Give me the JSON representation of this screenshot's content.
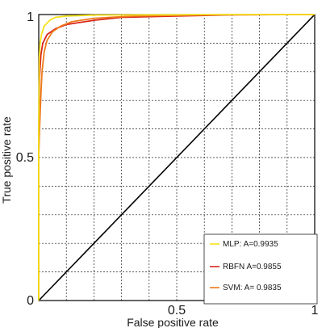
{
  "chart_data": {
    "type": "line",
    "xlabel": "False positive rate",
    "ylabel": "True positive rate",
    "xlim": [
      0,
      1
    ],
    "ylim": [
      0,
      1
    ],
    "grid": true,
    "x_ticks": [
      {
        "value": 0.5,
        "label": "0.5"
      },
      {
        "value": 1,
        "label": "1"
      }
    ],
    "y_ticks": [
      {
        "value": 0,
        "label": "0"
      },
      {
        "value": 0.5,
        "label": "0.5"
      },
      {
        "value": 1,
        "label": "1"
      }
    ],
    "legend_position": "bottom-right",
    "series": [
      {
        "name": "MLP: A=0.9935",
        "color": "#f5e11b",
        "x": [
          0,
          0,
          0.002,
          0.005,
          0.01,
          0.02,
          0.04,
          0.06,
          0.1,
          0.2,
          0.4,
          0.7,
          1
        ],
        "y": [
          0,
          0.6,
          0.85,
          0.9,
          0.93,
          0.96,
          0.98,
          0.99,
          0.995,
          0.998,
          0.999,
          1,
          1
        ]
      },
      {
        "name": "RBFN A=0.9855",
        "color": "#d9261c",
        "x": [
          0,
          0,
          0.003,
          0.008,
          0.015,
          0.03,
          0.06,
          0.1,
          0.2,
          0.3,
          0.5,
          0.7,
          1
        ],
        "y": [
          0,
          0.58,
          0.78,
          0.86,
          0.9,
          0.93,
          0.95,
          0.965,
          0.98,
          0.99,
          0.995,
          0.999,
          1
        ]
      },
      {
        "name": "SVM: A= 0.9835",
        "color": "#ee7a1a",
        "x": [
          0,
          0,
          0.003,
          0.008,
          0.012,
          0.02,
          0.03,
          0.05,
          0.08,
          0.12,
          0.2,
          0.35,
          0.6,
          1
        ],
        "y": [
          0,
          0.5,
          0.6,
          0.72,
          0.8,
          0.87,
          0.91,
          0.94,
          0.96,
          0.975,
          0.987,
          0.995,
          0.999,
          1
        ]
      },
      {
        "name": "",
        "color": "#000000",
        "x": [
          0,
          1
        ],
        "y": [
          0,
          1
        ]
      }
    ]
  }
}
